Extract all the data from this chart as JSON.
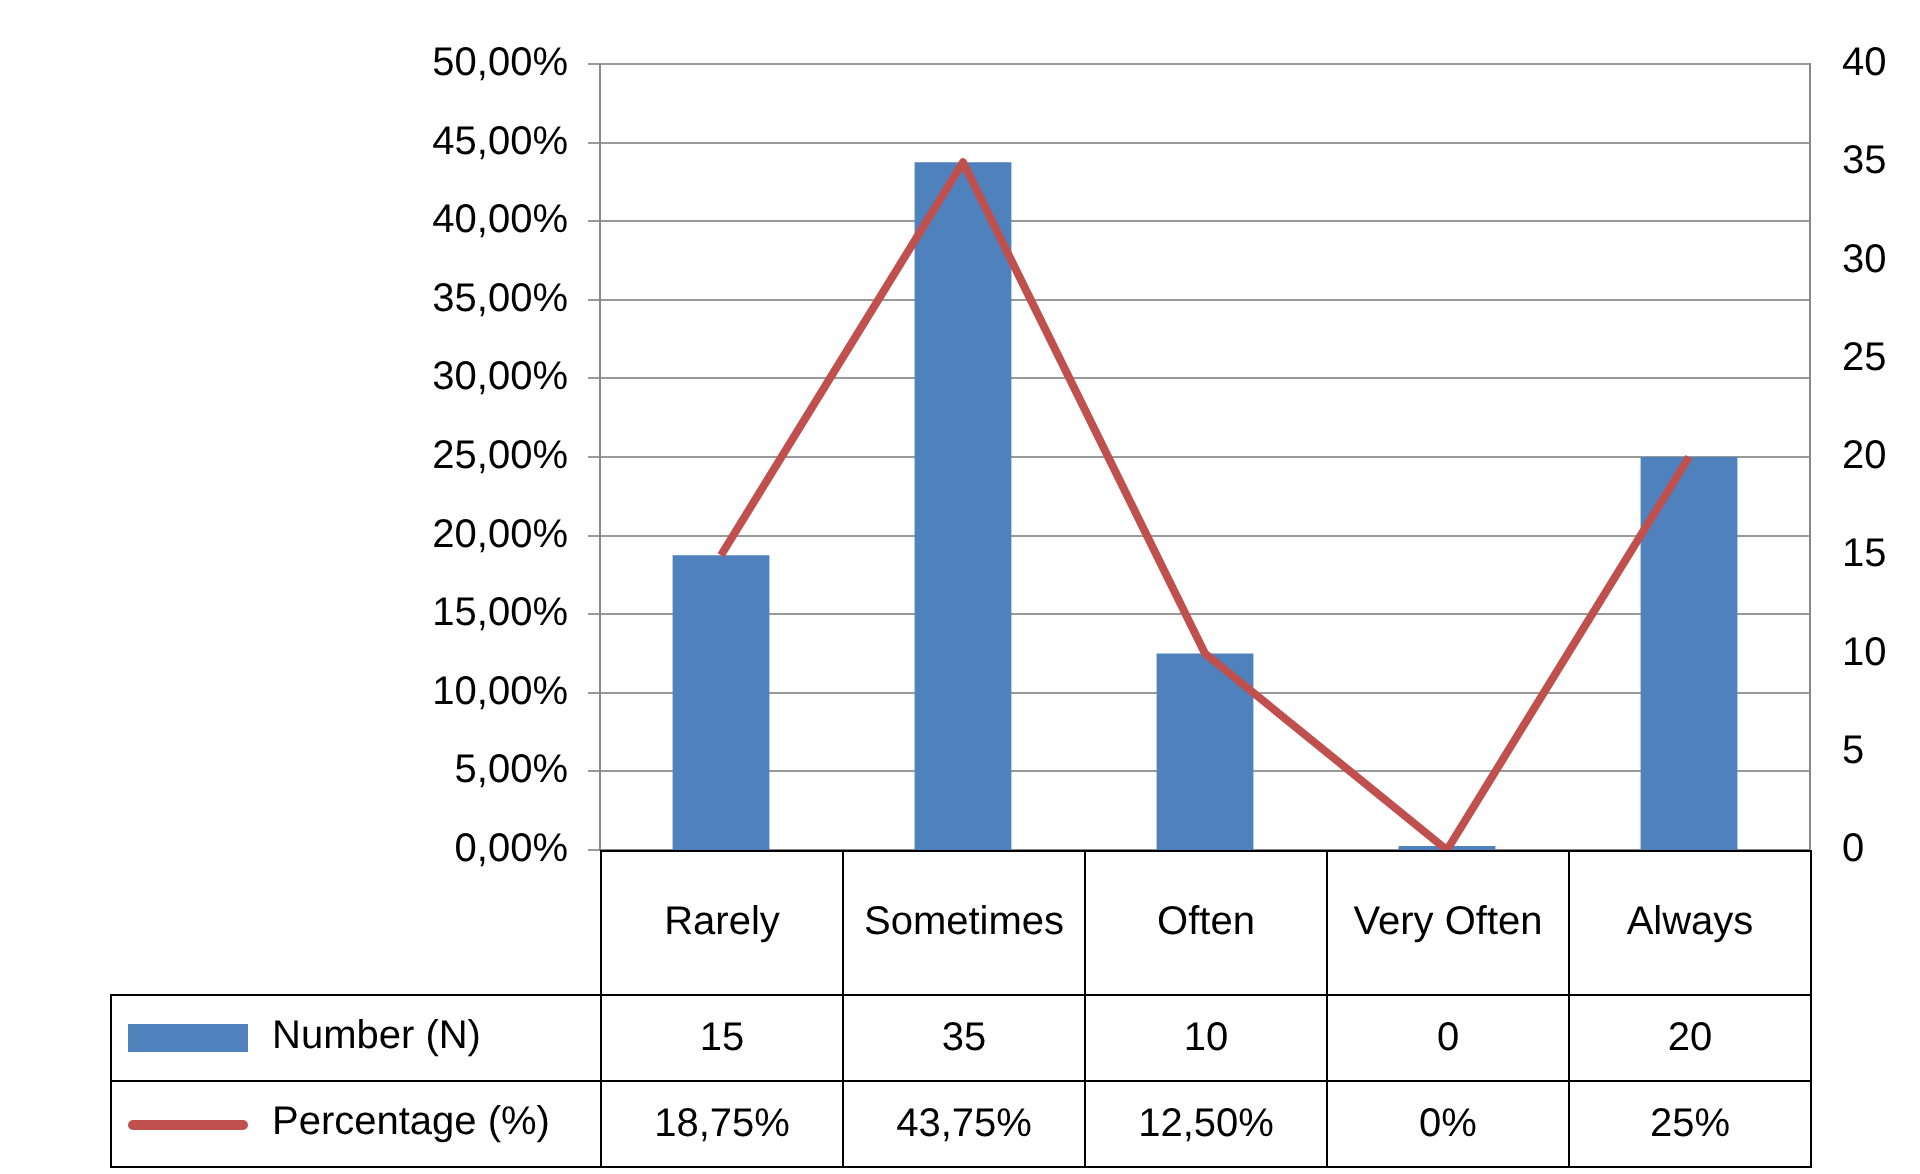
{
  "chart_data": {
    "type": "bar",
    "categories": [
      "Rarely",
      "Sometimes",
      "Often",
      "Very Often",
      "Always"
    ],
    "series": [
      {
        "name": "Number (N)",
        "axis": "y2",
        "color": "#4f81bd",
        "values": [
          15,
          35,
          10,
          0,
          20
        ],
        "value_labels": [
          "15",
          "35",
          "10",
          "0",
          "20"
        ]
      },
      {
        "name": "Percentage (%)",
        "type": "line",
        "axis": "y",
        "color": "#c0504d",
        "values": [
          18.75,
          43.75,
          12.5,
          0,
          25
        ],
        "value_labels": [
          "18,75%",
          "43,75%",
          "12,50%",
          "0%",
          "25%"
        ]
      }
    ],
    "ylim": [
      0,
      50
    ],
    "yticks": [
      {
        "value": 0,
        "label": "0,00%"
      },
      {
        "value": 5,
        "label": "5,00%"
      },
      {
        "value": 10,
        "label": "10,00%"
      },
      {
        "value": 15,
        "label": "15,00%"
      },
      {
        "value": 20,
        "label": "20,00%"
      },
      {
        "value": 25,
        "label": "25,00%"
      },
      {
        "value": 30,
        "label": "30,00%"
      },
      {
        "value": 35,
        "label": "35,00%"
      },
      {
        "value": 40,
        "label": "40,00%"
      },
      {
        "value": 45,
        "label": "45,00%"
      },
      {
        "value": 50,
        "label": "50,00%"
      }
    ],
    "y2lim": [
      0,
      40
    ],
    "y2ticks": [
      0,
      5,
      10,
      15,
      20,
      25,
      30,
      35,
      40
    ],
    "grid": "y",
    "legend": "bottom",
    "marker": "none",
    "line_style": "solid"
  }
}
